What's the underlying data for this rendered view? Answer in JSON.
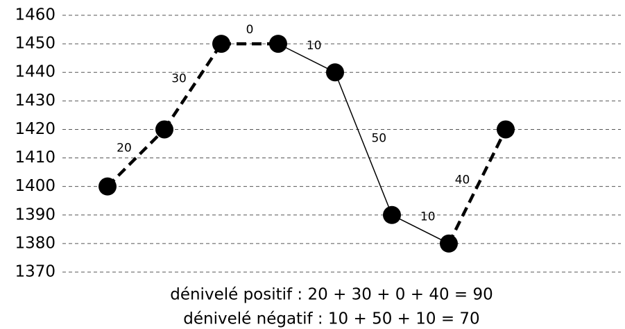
{
  "chart_data": {
    "type": "line",
    "categories": [
      null,
      null,
      null,
      null,
      null,
      null,
      null,
      null
    ],
    "values": [
      1400,
      1420,
      1450,
      1450,
      1440,
      1390,
      1380,
      1420
    ],
    "color": "#000000",
    "segment_labels": [
      20,
      30,
      0,
      10,
      50,
      10,
      40
    ],
    "ylim": [
      1370,
      1460
    ],
    "yticks": [
      1370,
      1380,
      1390,
      1400,
      1410,
      1420,
      1430,
      1440,
      1450,
      1460
    ],
    "grid": true,
    "annotations": [
      "dénivelé positif : 20 + 30 + 0 + 40 = 90",
      "dénivelé négatif : 10 + 50 + 10 = 70"
    ]
  }
}
